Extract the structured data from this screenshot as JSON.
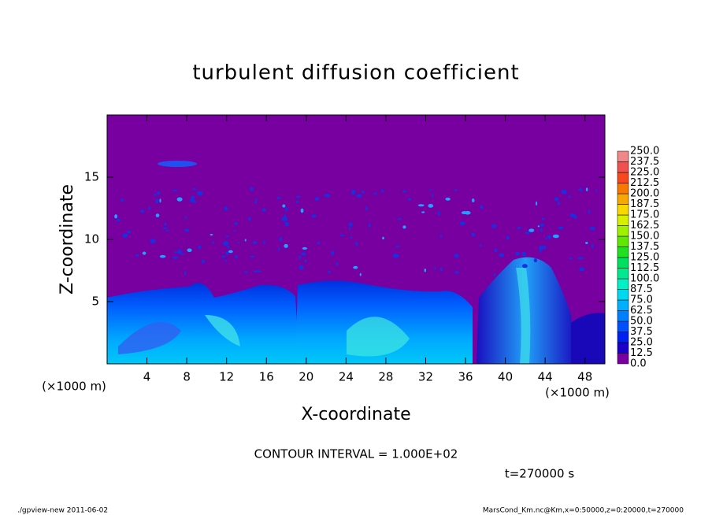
{
  "chart_data": {
    "type": "contour",
    "title": "turbulent diffusion coefficient",
    "x_label": "X-coordinate",
    "y_label": "Z-coordinate",
    "x_unit": "(×1000 m)",
    "y_unit": "(×1000 m)",
    "xlim": [
      0,
      50
    ],
    "ylim": [
      0,
      20
    ],
    "xticks": [
      4,
      8,
      12,
      16,
      20,
      24,
      28,
      32,
      36,
      40,
      44,
      48
    ],
    "yticks": [
      5,
      10,
      15
    ],
    "zlim": [
      0,
      250
    ],
    "zticks": [
      {
        "value": 0,
        "label": "0.0"
      },
      {
        "value": 12.5,
        "label": "12.5"
      },
      {
        "value": 25,
        "label": "25.0"
      },
      {
        "value": 37.5,
        "label": "37.5"
      },
      {
        "value": 50,
        "label": "50.0"
      },
      {
        "value": 62.5,
        "label": "62.5"
      },
      {
        "value": 75,
        "label": "75.0"
      },
      {
        "value": 87.5,
        "label": "87.5"
      },
      {
        "value": 100,
        "label": "100.0"
      },
      {
        "value": 112.5,
        "label": "112.5"
      },
      {
        "value": 125,
        "label": "125.0"
      },
      {
        "value": 137.5,
        "label": "137.5"
      },
      {
        "value": 150,
        "label": "150.0"
      },
      {
        "value": 162.5,
        "label": "162.5"
      },
      {
        "value": 175,
        "label": "175.0"
      },
      {
        "value": 187.5,
        "label": "187.5"
      },
      {
        "value": 200,
        "label": "200.0"
      },
      {
        "value": 212.5,
        "label": "212.5"
      },
      {
        "value": 225,
        "label": "225.0"
      },
      {
        "value": 237.5,
        "label": "237.5"
      },
      {
        "value": 250,
        "label": "250.0"
      }
    ],
    "colors": [
      "#7800a0",
      "#1a00c8",
      "#0020f0",
      "#0050ff",
      "#0080ff",
      "#00b0ff",
      "#00d8f0",
      "#00f0c8",
      "#00e890",
      "#00e060",
      "#20e020",
      "#60e800",
      "#a0f000",
      "#d8f000",
      "#f8d800",
      "#f8a800",
      "#f87800",
      "#f84820",
      "#f05050",
      "#f08888"
    ],
    "contour_interval": "CONTOUR INTERVAL = 1.000E+02",
    "time_label": "t=270000 s",
    "footer_left": "./gpview-new  2011-06-02",
    "footer_right": "MarsCond_Km.nc@Km,x=0:50000,z=0:20000,t=270000"
  }
}
